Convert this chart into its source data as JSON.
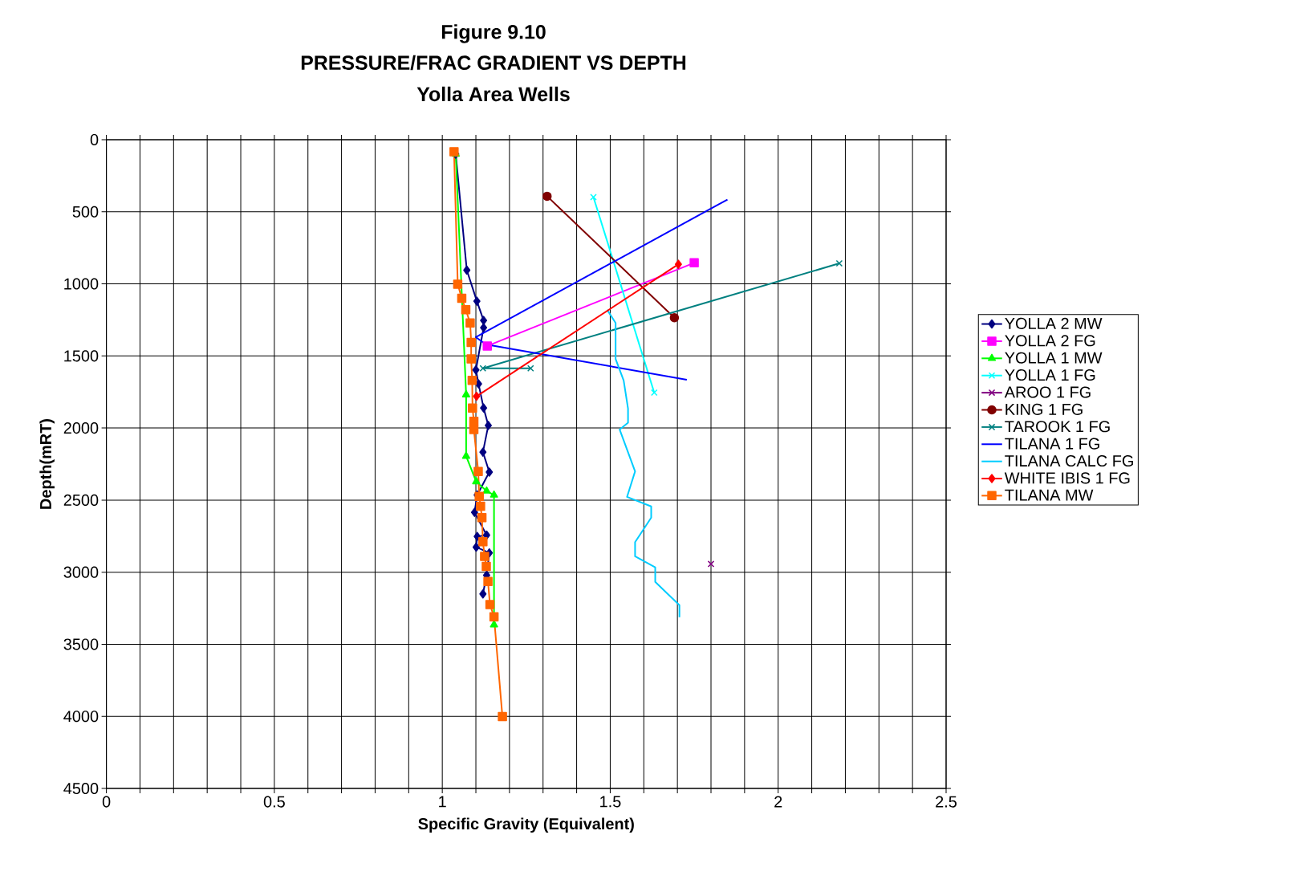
{
  "chart_data": {
    "type": "line",
    "title": "PRESSURE/FRAC GRADIENT VS DEPTH",
    "subtitle": "Yolla Area Wells",
    "annotations": [
      "Figure 9.10"
    ],
    "xlabel": "Specific Gravity (Equivalent)",
    "ylabel": "Depth(mRT)",
    "xlim": [
      0,
      2.5
    ],
    "ylim": [
      4500,
      0
    ],
    "xticks": [
      0,
      {
        "value": 0.1,
        "label": null
      },
      {
        "value": 0.2,
        "label": null
      },
      {
        "value": 0.3,
        "label": null
      },
      {
        "value": 0.4,
        "label": null
      },
      0.5,
      {
        "value": 0.6,
        "label": null
      },
      {
        "value": 0.7,
        "label": null
      },
      {
        "value": 0.8,
        "label": null
      },
      {
        "value": 0.9,
        "label": null
      },
      1,
      {
        "value": 1.1,
        "label": null
      },
      {
        "value": 1.2,
        "label": null
      },
      {
        "value": 1.3,
        "label": null
      },
      {
        "value": 1.4,
        "label": null
      },
      1.5,
      {
        "value": 1.6,
        "label": null
      },
      {
        "value": 1.7,
        "label": null
      },
      {
        "value": 1.8,
        "label": null
      },
      {
        "value": 1.9,
        "label": null
      },
      2,
      {
        "value": 2.1,
        "label": null
      },
      {
        "value": 2.2,
        "label": null
      },
      {
        "value": 2.3,
        "label": null
      },
      {
        "value": 2.4,
        "label": null
      },
      2.5
    ],
    "yticks": [
      0,
      500,
      1000,
      1500,
      2000,
      2500,
      3000,
      3500,
      4000,
      4500
    ],
    "grid": true,
    "legend": "right",
    "line_style": "solid",
    "series": [
      {
        "name": "YOLLA 2 MW",
        "color": "#000080",
        "marker": "diamond",
        "x": [
          1.04,
          1.073,
          1.103,
          1.123,
          1.123,
          1.1,
          1.108,
          1.123,
          1.137,
          1.121,
          1.14,
          1.104,
          1.096,
          1.132,
          1.104,
          1.101,
          1.14,
          1.132,
          1.121
        ],
        "values": [
          100,
          905,
          1120,
          1254,
          1304,
          1597,
          1694,
          1861,
          1982,
          2167,
          2306,
          2464,
          2585,
          2743,
          2752,
          2826,
          2866,
          3021,
          3151
        ]
      },
      {
        "name": "YOLLA 2 FG",
        "color": "#ff00ff",
        "marker": "square",
        "x": [
          1.134,
          1.75
        ],
        "values": [
          1431,
          854
        ]
      },
      {
        "name": "YOLLA 1 MW",
        "color": "#00ff00",
        "marker": "triangle",
        "x": [
          1.04,
          1.071,
          1.071,
          1.101,
          1.132,
          1.154,
          1.154
        ],
        "values": [
          100,
          1769,
          2195,
          2372,
          2437,
          2465,
          3365
        ]
      },
      {
        "name": "YOLLA 1 FG",
        "color": "#00ffff",
        "marker": "cross",
        "x": [
          1.45,
          1.631
        ],
        "values": [
          398,
          1754
        ]
      },
      {
        "name": "AROO 1 FG",
        "color": "#800080",
        "marker": "cross",
        "x": [
          1.8
        ],
        "values": [
          2943
        ]
      },
      {
        "name": "KING 1 FG",
        "color": "#800000",
        "marker": "circle",
        "x": [
          1.312,
          1.691
        ],
        "values": [
          392,
          1235
        ]
      },
      {
        "name": "TAROOK 1 FG",
        "color": "#008080",
        "marker": "cross",
        "x": [
          2.182,
          1.121,
          1.263
        ],
        "values": [
          858,
          1586,
          1586
        ]
      },
      {
        "name": "TILANA 1 FG",
        "color": "#0000ff",
        "marker": "none",
        "x": [
          1.849,
          1.1,
          1.13,
          1.728
        ],
        "values": [
          415,
          1370,
          1420,
          1665
        ]
      },
      {
        "name": "TILANA CALC FG",
        "color": "#00ccff",
        "marker": "none",
        "x": [
          1.491,
          1.516,
          1.516,
          1.54,
          1.553,
          1.553,
          1.528,
          1.574,
          1.55,
          1.622,
          1.622,
          1.574,
          1.574,
          1.634,
          1.634,
          1.706,
          1.706
        ],
        "values": [
          1180,
          1271,
          1521,
          1670,
          1865,
          1963,
          2010,
          2301,
          2478,
          2544,
          2622,
          2792,
          2890,
          2966,
          3067,
          3229,
          3313
        ]
      },
      {
        "name": "WHITE IBIS 1 FG",
        "color": "#ff0000",
        "marker": "diamond",
        "x": [
          1.703,
          1.102
        ],
        "values": [
          864,
          1780
        ]
      },
      {
        "name": "TILANA MW",
        "color": "#ff6600",
        "marker": "square",
        "x": [
          1.035,
          1.046,
          1.058,
          1.07,
          1.083,
          1.086,
          1.086,
          1.089,
          1.09,
          1.094,
          1.094,
          1.107,
          1.11,
          1.114,
          1.118,
          1.121,
          1.126,
          1.131,
          1.136,
          1.142,
          1.154,
          1.179
        ],
        "values": [
          83,
          1002,
          1100,
          1180,
          1271,
          1406,
          1521,
          1670,
          1861,
          1954,
          2010,
          2301,
          2474,
          2542,
          2622,
          2789,
          2891,
          2960,
          3064,
          3225,
          3309,
          4001
        ]
      }
    ]
  }
}
